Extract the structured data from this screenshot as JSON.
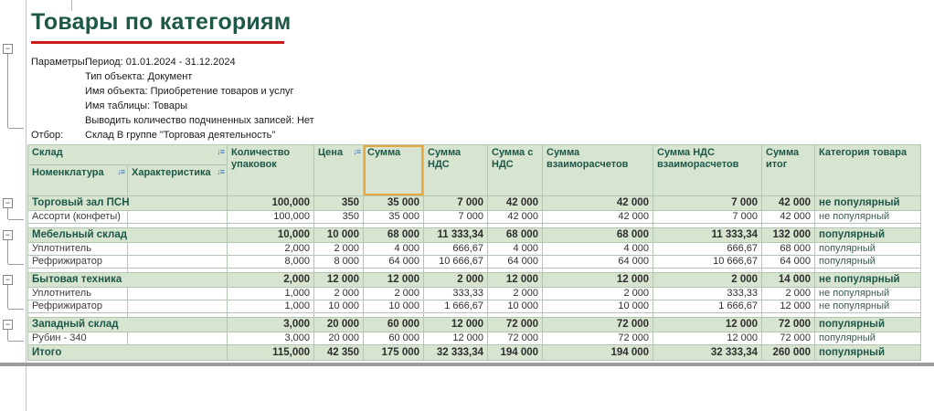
{
  "report": {
    "title": "Товары по категориям",
    "param_lines": [
      {
        "label": "Параметры:",
        "value": "Период: 01.01.2024 - 31.12.2024"
      },
      {
        "label": "",
        "value": "Тип объекта: Документ"
      },
      {
        "label": "",
        "value": "Имя объекта: Приобретение товаров и услуг"
      },
      {
        "label": "",
        "value": "Имя таблицы: Товары"
      },
      {
        "label": "",
        "value": "Выводить количество подчиненных записей: Нет"
      },
      {
        "label": "Отбор:",
        "value": "Склад В группе \"Торговая деятельность\""
      }
    ]
  },
  "icons": {
    "sort": "↓≡",
    "collapse": "−"
  },
  "colors": {
    "header_green": "#d7e4d0",
    "dark_green_text": "#1d5747",
    "selection_orange": "#e8a73e",
    "underline_red": "#cb1c1c",
    "sort_icon_blue": "#3a77c2"
  },
  "table": {
    "header": {
      "sklad": "Склад",
      "nomenclature": "Номенклатура",
      "characteristic": "Характеристика",
      "qty": "Количество упаковок",
      "price": "Цена",
      "sum": "Сумма",
      "sum_nds": "Сумма НДС",
      "sum_s_nds": "Сумма с НДС",
      "sum_vz": "Сумма взаиморасчетов",
      "sum_nds_vz": "Сумма НДС взаиморасчетов",
      "sum_itog": "Сумма итог",
      "category": "Категория товара"
    },
    "rows": [
      {
        "type": "group",
        "name": "Торговый зал ПСН",
        "values": [
          "100,000",
          "350",
          "35 000",
          "7 000",
          "42 000",
          "42 000",
          "7 000",
          "42 000"
        ],
        "category": "не популярный"
      },
      {
        "type": "detail",
        "name": "Ассорти (конфеты)",
        "characteristic": "",
        "values": [
          "100,000",
          "350",
          "35 000",
          "7 000",
          "42 000",
          "42 000",
          "7 000",
          "42 000"
        ],
        "category": "не популярный"
      },
      {
        "type": "spacer"
      },
      {
        "type": "group",
        "name": "Мебельный склад",
        "values": [
          "10,000",
          "10 000",
          "68 000",
          "11 333,34",
          "68 000",
          "68 000",
          "11 333,34",
          "132 000"
        ],
        "category": "популярный"
      },
      {
        "type": "detail",
        "name": "Уплотнитель",
        "characteristic": "",
        "values": [
          "2,000",
          "2 000",
          "4 000",
          "666,67",
          "4 000",
          "4 000",
          "666,67",
          "68 000"
        ],
        "category": "популярный"
      },
      {
        "type": "detail",
        "name": "Рефрижиратор",
        "characteristic": "",
        "values": [
          "8,000",
          "8 000",
          "64 000",
          "10 666,67",
          "64 000",
          "64 000",
          "10 666,67",
          "64 000"
        ],
        "category": "популярный"
      },
      {
        "type": "spacer"
      },
      {
        "type": "group",
        "name": "Бытовая техника",
        "values": [
          "2,000",
          "12 000",
          "12 000",
          "2 000",
          "12 000",
          "12 000",
          "2 000",
          "14 000"
        ],
        "category": "не популярный"
      },
      {
        "type": "detail",
        "name": "Уплотнитель",
        "characteristic": "",
        "values": [
          "1,000",
          "2 000",
          "2 000",
          "333,33",
          "2 000",
          "2 000",
          "333,33",
          "2 000"
        ],
        "category": "не популярный"
      },
      {
        "type": "detail",
        "name": "Рефрижиратор",
        "characteristic": "",
        "values": [
          "1,000",
          "10 000",
          "10 000",
          "1 666,67",
          "10 000",
          "10 000",
          "1 666,67",
          "12 000"
        ],
        "category": "не популярный"
      },
      {
        "type": "spacer"
      },
      {
        "type": "group",
        "name": "Западный склад",
        "values": [
          "3,000",
          "20 000",
          "60 000",
          "12 000",
          "72 000",
          "72 000",
          "12 000",
          "72 000"
        ],
        "category": "популярный"
      },
      {
        "type": "detail",
        "name": "Рубин - 340",
        "characteristic": "",
        "values": [
          "3,000",
          "20 000",
          "60 000",
          "12 000",
          "72 000",
          "72 000",
          "12 000",
          "72 000"
        ],
        "category": "популярный"
      },
      {
        "type": "total",
        "name": "Итого",
        "values": [
          "115,000",
          "42 350",
          "175 000",
          "32 333,34",
          "194 000",
          "194 000",
          "32 333,34",
          "260 000"
        ],
        "category": "популярный"
      }
    ]
  }
}
